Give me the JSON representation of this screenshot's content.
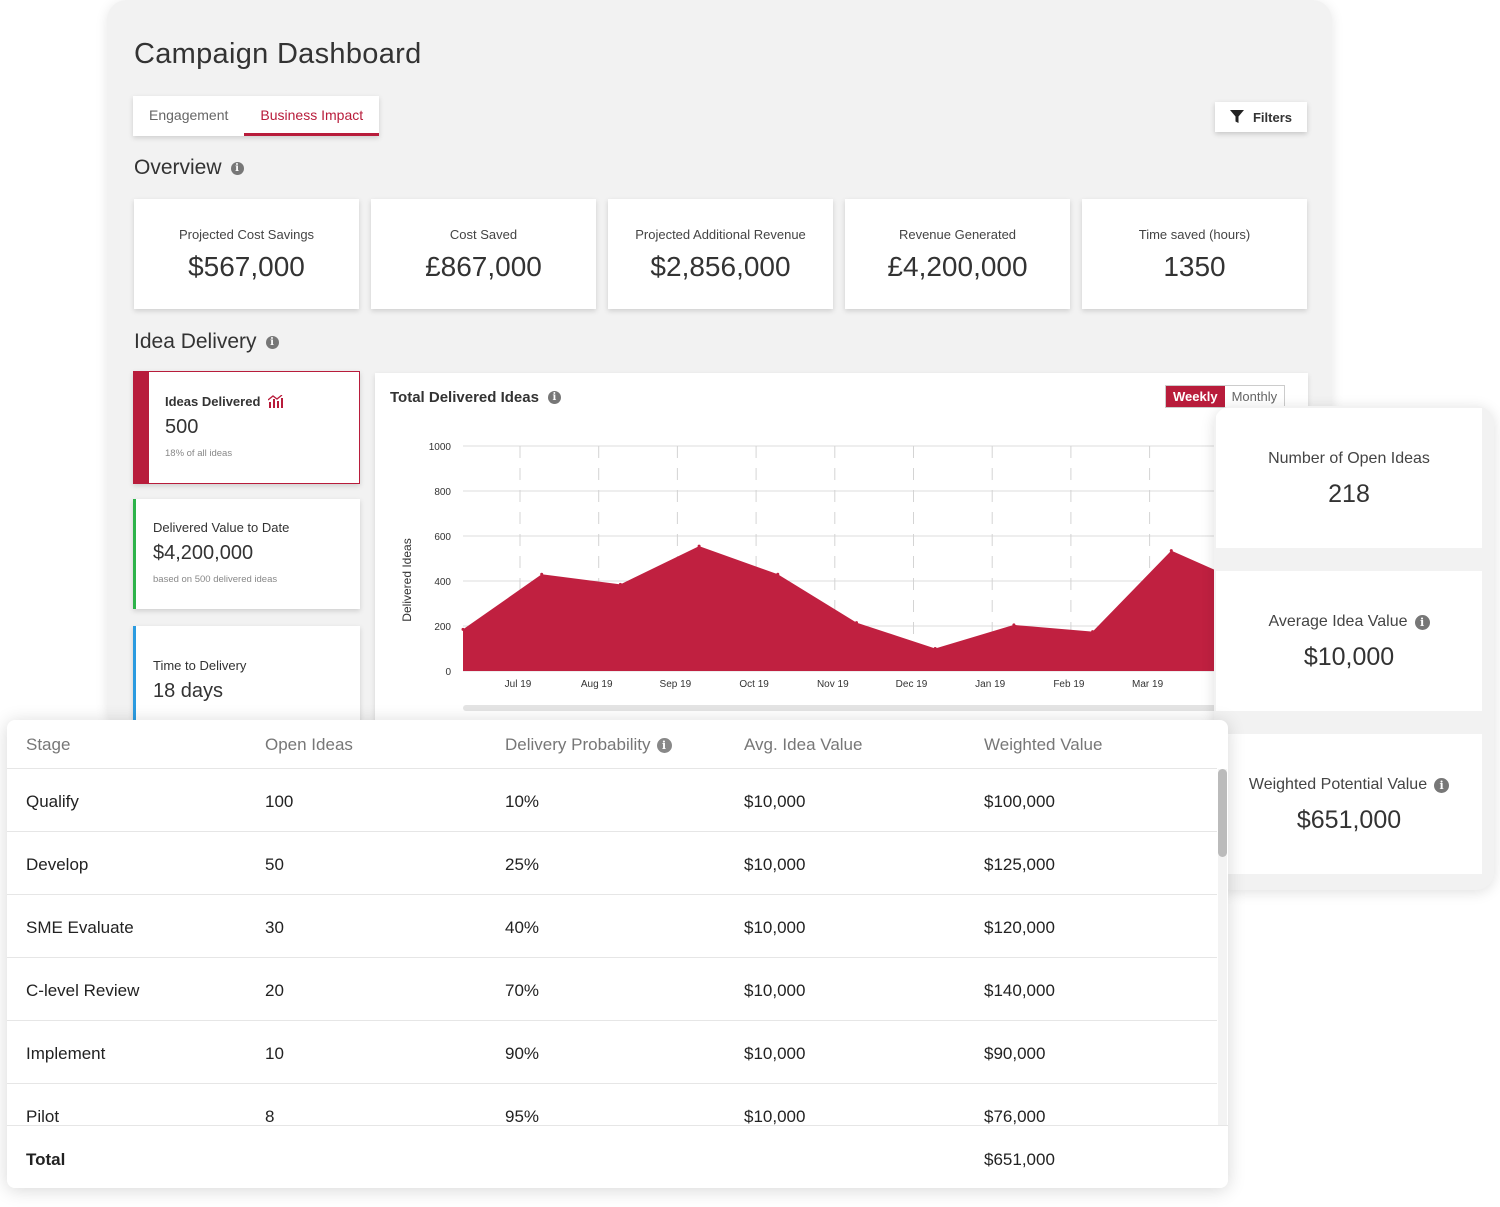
{
  "page_title": "Campaign Dashboard",
  "tabs": [
    {
      "label": "Engagement",
      "active": false
    },
    {
      "label": "Business Impact",
      "active": true
    }
  ],
  "filters_label": "Filters",
  "overview": {
    "title": "Overview",
    "kpis": [
      {
        "label": "Projected Cost Savings",
        "value": "$567,000"
      },
      {
        "label": "Cost Saved",
        "value": "£867,000"
      },
      {
        "label": "Projected Additional Revenue",
        "value": "$2,856,000"
      },
      {
        "label": "Revenue Generated",
        "value": "£4,200,000"
      },
      {
        "label": "Time saved (hours)",
        "value": "1350"
      }
    ]
  },
  "idea_delivery": {
    "title": "Idea Delivery",
    "cards": [
      {
        "label": "Ideas Delivered",
        "value": "500",
        "sub": "18% of all ideas"
      },
      {
        "label": "Delivered Value to Date",
        "value": "$4,200,000",
        "sub": "based on 500 delivered ideas"
      },
      {
        "label": "Time to Delivery",
        "value": "18 days"
      }
    ]
  },
  "chart": {
    "title": "Total Delivered Ideas",
    "toggle": {
      "weekly": "Weekly",
      "monthly": "Monthly"
    },
    "ylabel": "Delivered Ideas",
    "fill_color": "#c02040"
  },
  "chart_data": {
    "type": "area",
    "title": "Total Delivered Ideas",
    "xlabel": "",
    "ylabel": "Delivered Ideas",
    "ylim": [
      0,
      1000
    ],
    "yticks": [
      0,
      200,
      400,
      600,
      800,
      1000
    ],
    "x_tick_labels": [
      "Jul 19",
      "Aug 19",
      "Sep 19",
      "Oct 19",
      "Nov 19",
      "Dec 19",
      "Jan 19",
      "Feb 19",
      "Mar 19"
    ],
    "grid": true,
    "series": [
      {
        "values": [
          185,
          430,
          385,
          555,
          430,
          215,
          100,
          205,
          175,
          535,
          380
        ]
      }
    ]
  },
  "right_cards": [
    {
      "label": "Number of Open Ideas",
      "value": "218"
    },
    {
      "label": "Average Idea Value",
      "value": "$10,000"
    },
    {
      "label": "Weighted Potential Value",
      "value": "$651,000"
    }
  ],
  "table": {
    "headers": [
      "Stage",
      "Open Ideas",
      "Delivery Probability",
      "Avg. Idea Value",
      "Weighted Value"
    ],
    "rows": [
      [
        "Qualify",
        "100",
        "10%",
        "$10,000",
        "$100,000"
      ],
      [
        "Develop",
        "50",
        "25%",
        "$10,000",
        "$125,000"
      ],
      [
        "SME Evaluate",
        "30",
        "40%",
        "$10,000",
        "$120,000"
      ],
      [
        "C-level Review",
        "20",
        "70%",
        "$10,000",
        "$140,000"
      ],
      [
        "Implement",
        "10",
        "90%",
        "$10,000",
        "$90,000"
      ],
      [
        "Pilot",
        "8",
        "95%",
        "$10,000",
        "$76,000"
      ]
    ],
    "total_label": "Total",
    "total_value": "$651,000"
  }
}
